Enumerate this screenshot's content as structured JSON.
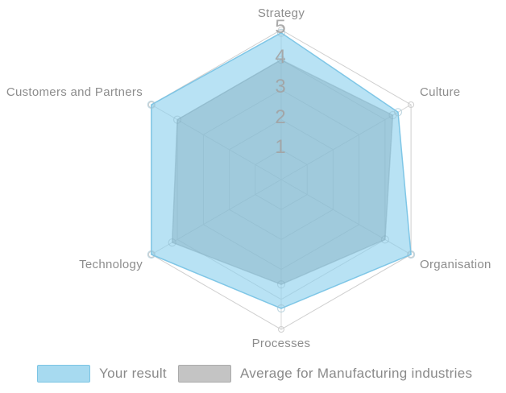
{
  "chart_data": {
    "type": "radar",
    "title": "",
    "categories": [
      "Strategy",
      "Culture",
      "Organisation",
      "Processes",
      "Technology",
      "Customers and Partners"
    ],
    "series": [
      {
        "name": "Your result",
        "values": [
          4.9,
          4.5,
          5.0,
          4.3,
          5.0,
          5.0
        ],
        "fill": "rgba(125,202,235,0.55)",
        "stroke": "rgba(118,194,228,0.9)",
        "marker_stroke": "rgba(160,195,210,0.65)"
      },
      {
        "name": "Average for Manufacturing industries",
        "values": [
          4.0,
          4.3,
          4.0,
          3.5,
          4.2,
          4.0
        ],
        "fill": "rgba(150,150,150,0.5)",
        "stroke": "rgba(140,140,140,0.45)",
        "marker_stroke": "rgba(120,120,120,0.3)"
      }
    ],
    "ticks": [
      1,
      2,
      3,
      4,
      5
    ],
    "axis_range": [
      0,
      5
    ],
    "grid": true,
    "grid_color": "#d9d9d9",
    "grid_outer_color": "#cfcfcf",
    "axis_label_color": "#8d8d8d",
    "tick_label_color": "#a3a3a3",
    "legend_position": "bottom"
  },
  "legend": {
    "items": [
      {
        "label": "Your result",
        "swatch_fill": "#a7daf0",
        "swatch_border": "#7cc5e4"
      },
      {
        "label": "Average for Manufacturing industries",
        "swatch_fill": "#c4c4c4",
        "swatch_border": "#ababab"
      }
    ]
  }
}
